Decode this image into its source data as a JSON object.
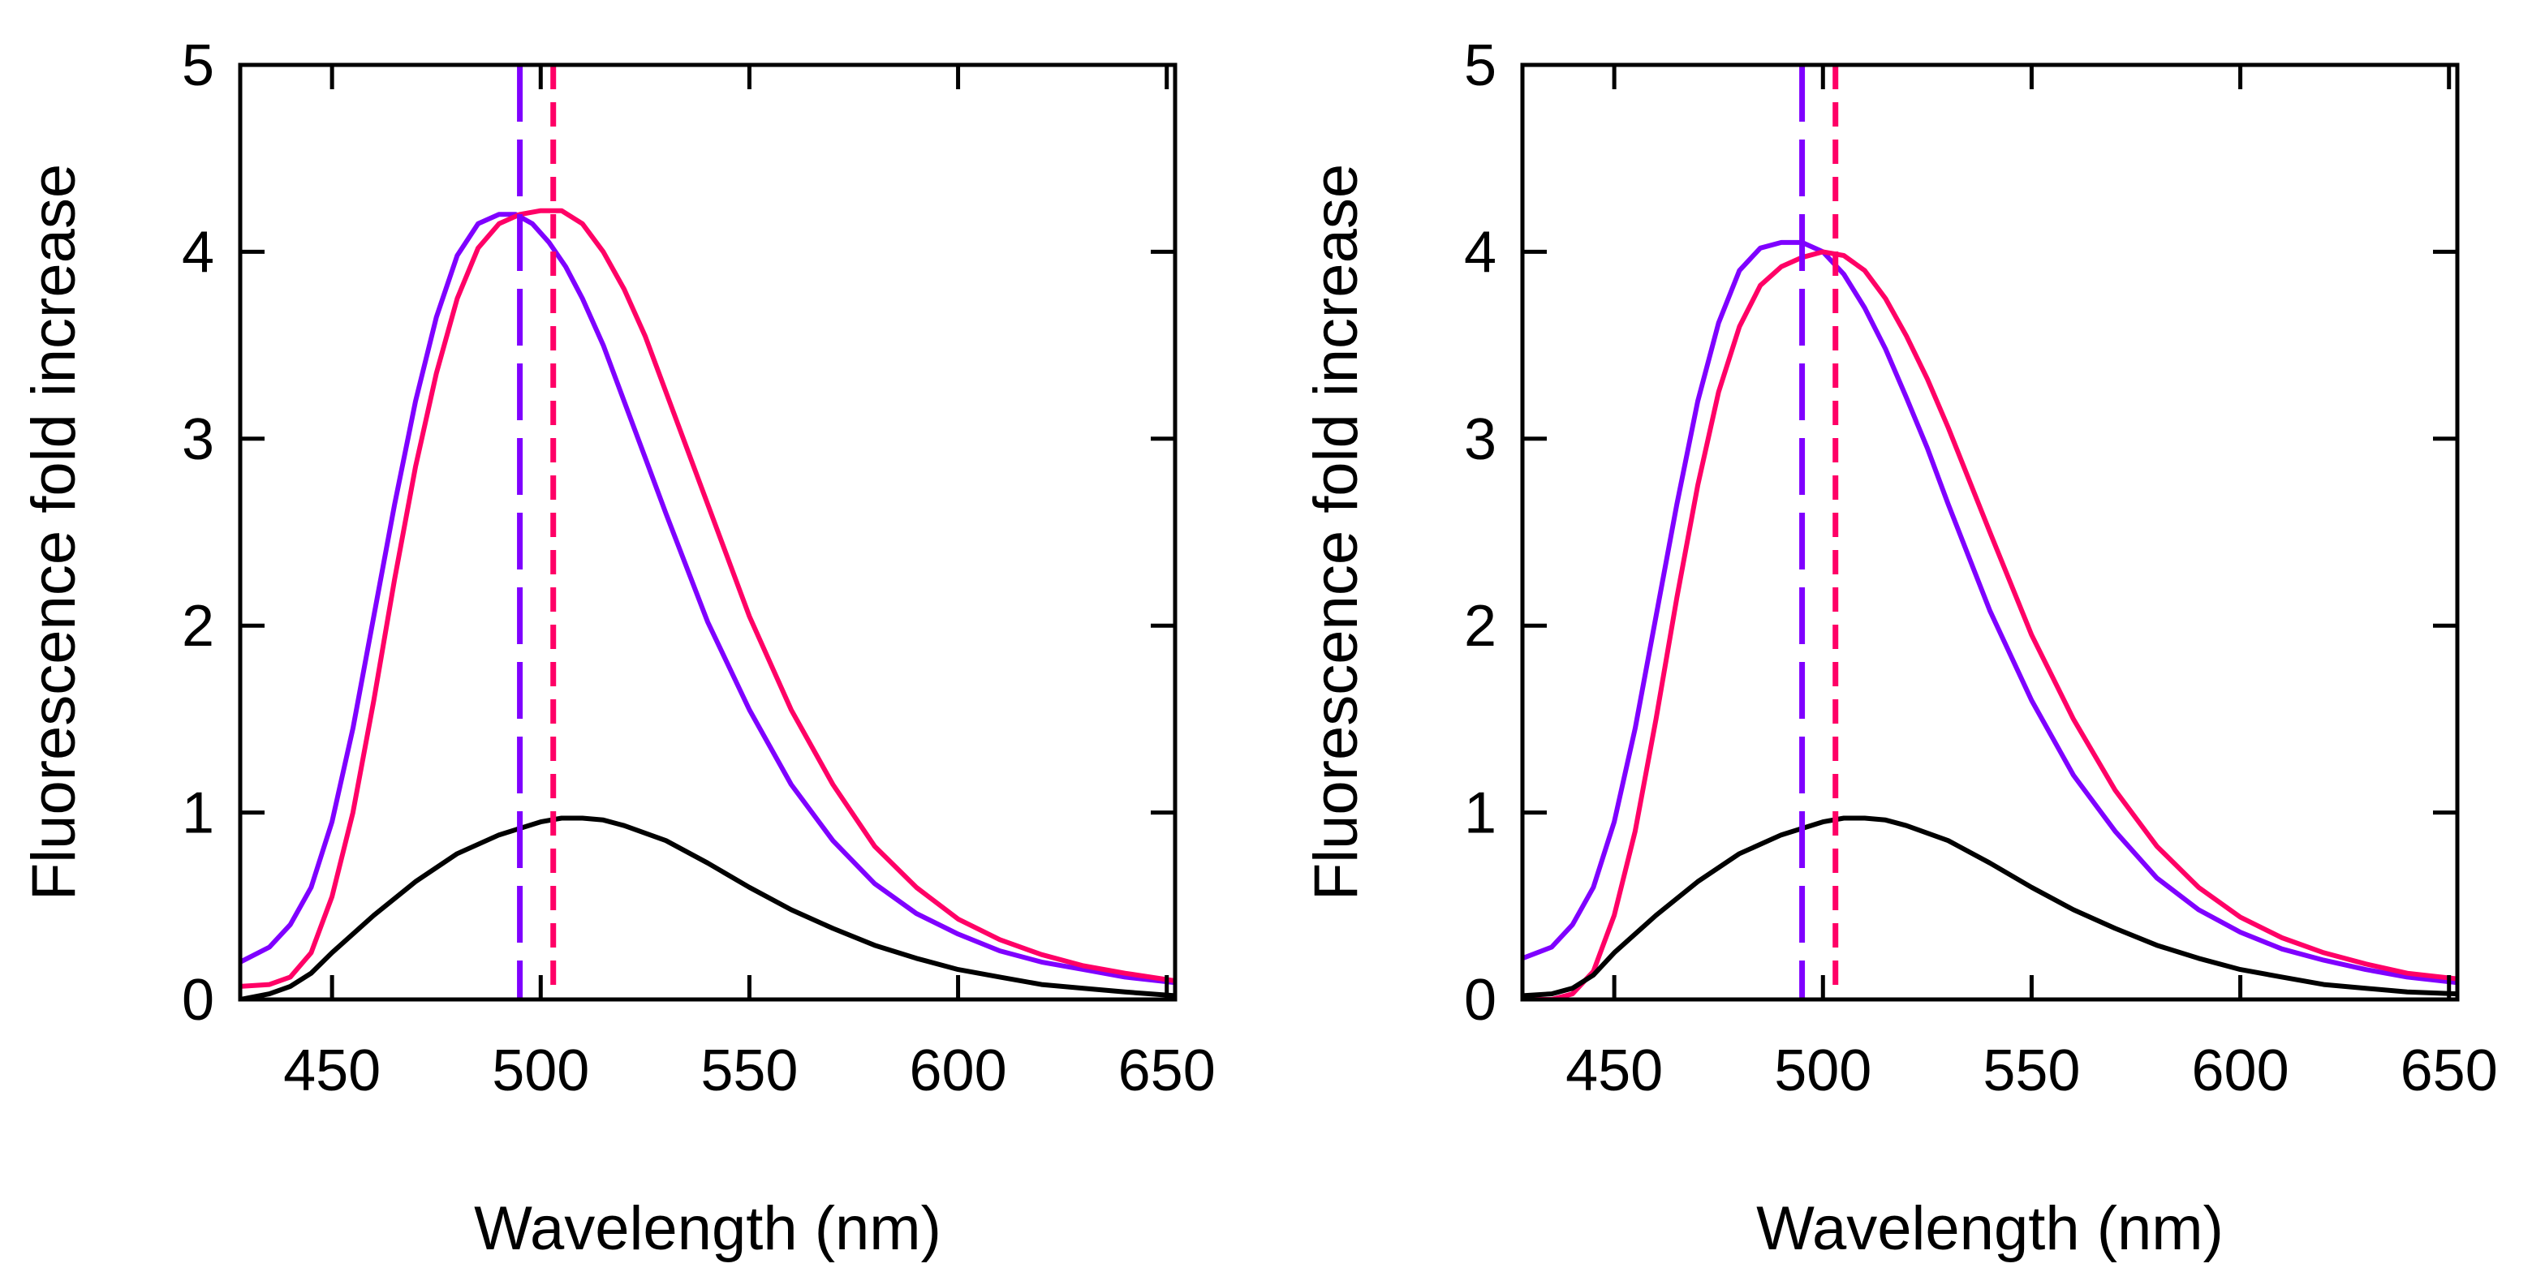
{
  "chart_data": [
    {
      "type": "line",
      "xlabel": "Wavelength (nm)",
      "ylabel": "Fluorescence fold increase",
      "xlim": [
        428,
        652
      ],
      "ylim": [
        0,
        5
      ],
      "xticks": [
        450,
        500,
        550,
        600,
        650
      ],
      "yticks": [
        0,
        1,
        2,
        3,
        4,
        5
      ],
      "grid": false,
      "legend": "none",
      "series": [
        {
          "name": "purple",
          "color": "#7f00ff",
          "x": [
            428,
            435,
            440,
            445,
            450,
            455,
            460,
            465,
            470,
            475,
            480,
            485,
            490,
            494,
            498,
            502,
            506,
            510,
            515,
            520,
            525,
            530,
            540,
            550,
            560,
            570,
            580,
            590,
            600,
            610,
            620,
            630,
            640,
            652
          ],
          "y": [
            0.2,
            0.28,
            0.4,
            0.6,
            0.95,
            1.45,
            2.05,
            2.65,
            3.2,
            3.65,
            3.98,
            4.15,
            4.2,
            4.2,
            4.15,
            4.05,
            3.92,
            3.75,
            3.5,
            3.2,
            2.9,
            2.6,
            2.02,
            1.55,
            1.15,
            0.85,
            0.62,
            0.46,
            0.35,
            0.26,
            0.2,
            0.16,
            0.12,
            0.09
          ]
        },
        {
          "name": "pink",
          "color": "#ff0066",
          "x": [
            428,
            435,
            440,
            445,
            450,
            455,
            460,
            465,
            470,
            475,
            480,
            485,
            490,
            495,
            500,
            505,
            510,
            515,
            520,
            525,
            530,
            540,
            550,
            560,
            570,
            580,
            590,
            600,
            610,
            620,
            630,
            640,
            652
          ],
          "y": [
            0.07,
            0.08,
            0.12,
            0.25,
            0.55,
            1.0,
            1.6,
            2.25,
            2.85,
            3.35,
            3.75,
            4.02,
            4.15,
            4.2,
            4.22,
            4.22,
            4.15,
            4.0,
            3.8,
            3.55,
            3.25,
            2.65,
            2.05,
            1.55,
            1.15,
            0.82,
            0.6,
            0.43,
            0.32,
            0.24,
            0.18,
            0.14,
            0.1
          ]
        },
        {
          "name": "black",
          "color": "#000000",
          "x": [
            428,
            435,
            440,
            445,
            450,
            460,
            470,
            480,
            490,
            500,
            505,
            510,
            515,
            520,
            530,
            540,
            550,
            560,
            570,
            580,
            590,
            600,
            610,
            620,
            630,
            640,
            652
          ],
          "y": [
            0.0,
            0.03,
            0.07,
            0.14,
            0.25,
            0.45,
            0.63,
            0.78,
            0.88,
            0.95,
            0.97,
            0.97,
            0.96,
            0.93,
            0.85,
            0.73,
            0.6,
            0.48,
            0.38,
            0.29,
            0.22,
            0.16,
            0.12,
            0.08,
            0.06,
            0.04,
            0.02
          ]
        }
      ],
      "vlines": [
        {
          "x": 495,
          "color": "#7f00ff",
          "style": "long-dash"
        },
        {
          "x": 503,
          "color": "#ff0066",
          "style": "short-dash"
        }
      ]
    },
    {
      "type": "line",
      "xlabel": "Wavelength (nm)",
      "ylabel": "Fluorescence fold increase",
      "xlim": [
        428,
        652
      ],
      "ylim": [
        0,
        5
      ],
      "xticks": [
        450,
        500,
        550,
        600,
        650
      ],
      "yticks": [
        0,
        1,
        2,
        3,
        4,
        5
      ],
      "grid": false,
      "legend": "none",
      "series": [
        {
          "name": "purple",
          "color": "#7f00ff",
          "x": [
            428,
            435,
            440,
            445,
            450,
            455,
            460,
            465,
            470,
            475,
            480,
            485,
            490,
            495,
            500,
            505,
            510,
            515,
            520,
            525,
            530,
            540,
            550,
            560,
            570,
            580,
            590,
            600,
            610,
            620,
            630,
            640,
            652
          ],
          "y": [
            0.22,
            0.28,
            0.4,
            0.6,
            0.95,
            1.45,
            2.05,
            2.65,
            3.2,
            3.62,
            3.9,
            4.02,
            4.05,
            4.05,
            4.0,
            3.88,
            3.7,
            3.48,
            3.22,
            2.95,
            2.65,
            2.08,
            1.6,
            1.2,
            0.9,
            0.65,
            0.48,
            0.36,
            0.27,
            0.21,
            0.16,
            0.12,
            0.09
          ]
        },
        {
          "name": "pink",
          "color": "#ff0066",
          "x": [
            428,
            435,
            440,
            445,
            450,
            455,
            460,
            465,
            470,
            475,
            480,
            485,
            490,
            495,
            500,
            505,
            510,
            515,
            520,
            525,
            530,
            540,
            550,
            560,
            570,
            580,
            590,
            600,
            610,
            620,
            630,
            640,
            652
          ],
          "y": [
            0.0,
            0.0,
            0.03,
            0.15,
            0.45,
            0.9,
            1.5,
            2.15,
            2.75,
            3.25,
            3.6,
            3.82,
            3.92,
            3.97,
            4.0,
            3.98,
            3.9,
            3.75,
            3.55,
            3.32,
            3.06,
            2.5,
            1.95,
            1.5,
            1.12,
            0.82,
            0.6,
            0.44,
            0.33,
            0.25,
            0.19,
            0.14,
            0.11
          ]
        },
        {
          "name": "black",
          "color": "#000000",
          "x": [
            428,
            435,
            440,
            445,
            450,
            460,
            470,
            480,
            490,
            500,
            505,
            510,
            515,
            520,
            530,
            540,
            550,
            560,
            570,
            580,
            590,
            600,
            610,
            620,
            630,
            640,
            652
          ],
          "y": [
            0.02,
            0.03,
            0.06,
            0.13,
            0.25,
            0.45,
            0.63,
            0.78,
            0.88,
            0.95,
            0.97,
            0.97,
            0.96,
            0.93,
            0.85,
            0.73,
            0.6,
            0.48,
            0.38,
            0.29,
            0.22,
            0.16,
            0.12,
            0.08,
            0.06,
            0.04,
            0.03
          ]
        }
      ],
      "vlines": [
        {
          "x": 495,
          "color": "#7f00ff",
          "style": "long-dash"
        },
        {
          "x": 503,
          "color": "#ff0066",
          "style": "short-dash"
        }
      ]
    }
  ]
}
